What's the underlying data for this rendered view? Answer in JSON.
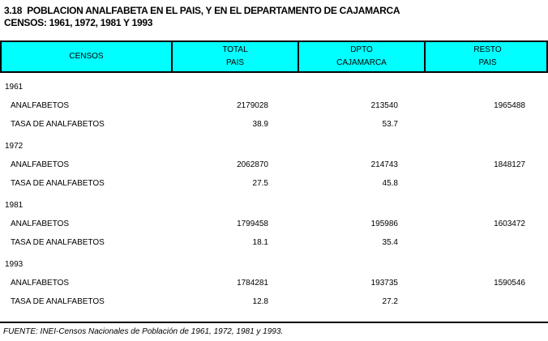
{
  "title": {
    "line1": "3.18  POBLACION ANALFABETA EN EL PAIS, Y EN EL DEPARTAMENTO DE CAJAMARCA",
    "line2": "CENSOS: 1961, 1972, 1981 Y 1993"
  },
  "table": {
    "header_bg_color": "#00FFFF",
    "border_color": "#000000",
    "header": {
      "censos": "CENSOS",
      "total": {
        "line1": "TOTAL",
        "line2": "PAIS"
      },
      "dpto": {
        "line1": "DPTO",
        "line2": "CAJAMARCA"
      },
      "resto": {
        "line1": "RESTO",
        "line2": "PAIS"
      }
    },
    "row_labels": {
      "analfabetos": "ANALFABETOS",
      "tasa": "TASA DE ANALFABETOS"
    },
    "sections": [
      {
        "year": "1961",
        "rows": [
          {
            "label": "ANALFABETOS",
            "total": "2179028",
            "dpto": "213540",
            "resto": "1965488"
          },
          {
            "label": "TASA DE ANALFABETOS",
            "total": "38.9",
            "dpto": "53.7",
            "resto": ""
          }
        ]
      },
      {
        "year": "1972",
        "rows": [
          {
            "label": "ANALFABETOS",
            "total": "2062870",
            "dpto": "214743",
            "resto": "1848127"
          },
          {
            "label": "TASA DE ANALFABETOS",
            "total": "27.5",
            "dpto": "45.8",
            "resto": ""
          }
        ]
      },
      {
        "year": "1981",
        "rows": [
          {
            "label": "ANALFABETOS",
            "total": "1799458",
            "dpto": "195986",
            "resto": "1603472"
          },
          {
            "label": "TASA DE ANALFABETOS",
            "total": "18.1",
            "dpto": "35.4",
            "resto": ""
          }
        ]
      },
      {
        "year": "1993",
        "rows": [
          {
            "label": "ANALFABETOS",
            "total": "1784281",
            "dpto": "193735",
            "resto": "1590546"
          },
          {
            "label": "TASA DE ANALFABETOS",
            "total": "12.8",
            "dpto": "27.2",
            "resto": ""
          }
        ]
      }
    ]
  },
  "footer": {
    "source": "FUENTE: INEI-Censos Nacionales de Población de 1961, 1972, 1981 y 1993."
  }
}
